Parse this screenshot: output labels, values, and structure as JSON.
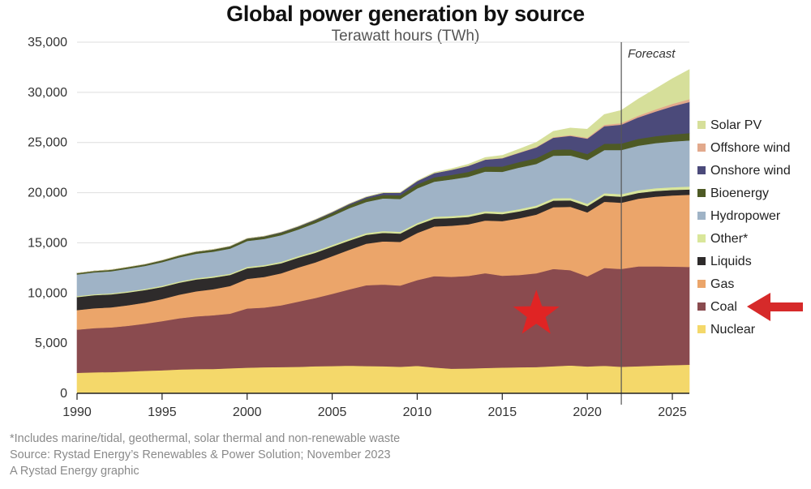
{
  "chart_data": {
    "type": "area",
    "title": "Global power generation by source",
    "subtitle": "Terawatt hours (TWh)",
    "ylim": [
      0,
      35000
    ],
    "yticks": [
      0,
      5000,
      10000,
      15000,
      20000,
      25000,
      30000,
      35000
    ],
    "ytick_labels": [
      "0",
      "5,000",
      "10,000",
      "15,000",
      "20,000",
      "25,000",
      "30,000",
      "35,000"
    ],
    "xlim": [
      1990,
      2026
    ],
    "xticks": [
      1990,
      1995,
      2000,
      2005,
      2010,
      2015,
      2020,
      2025
    ],
    "xtick_labels": [
      "1990",
      "1995",
      "2000",
      "2005",
      "2010",
      "2015",
      "2020",
      "2025"
    ],
    "forecast_label": "Forecast",
    "forecast_start": 2022,
    "legend_position": "right",
    "years": [
      1990,
      1991,
      1992,
      1993,
      1994,
      1995,
      1996,
      1997,
      1998,
      1999,
      2000,
      2001,
      2002,
      2003,
      2004,
      2005,
      2006,
      2007,
      2008,
      2009,
      2010,
      2011,
      2012,
      2013,
      2014,
      2015,
      2016,
      2017,
      2018,
      2019,
      2020,
      2021,
      2022,
      2023,
      2024,
      2025,
      2026
    ],
    "series": [
      {
        "name": "Nuclear",
        "color": "#f4d86a",
        "values": [
          2050,
          2100,
          2120,
          2180,
          2250,
          2300,
          2380,
          2420,
          2430,
          2500,
          2560,
          2600,
          2620,
          2640,
          2700,
          2720,
          2760,
          2720,
          2700,
          2650,
          2740,
          2580,
          2460,
          2480,
          2530,
          2570,
          2600,
          2620,
          2700,
          2780,
          2680,
          2750,
          2650,
          2700,
          2760,
          2810,
          2850
        ]
      },
      {
        "name": "Coal",
        "color": "#8a4b4f",
        "values": [
          4300,
          4400,
          4450,
          4550,
          4700,
          4900,
          5100,
          5250,
          5350,
          5450,
          5900,
          5950,
          6150,
          6500,
          6800,
          7200,
          7600,
          8050,
          8150,
          8100,
          8550,
          9100,
          9150,
          9220,
          9450,
          9150,
          9200,
          9350,
          9700,
          9500,
          8980,
          9750,
          9750,
          9950,
          9900,
          9820,
          9750
        ]
      },
      {
        "name": "Gas",
        "color": "#eba56a",
        "values": [
          1950,
          1980,
          2000,
          2050,
          2100,
          2200,
          2350,
          2500,
          2600,
          2750,
          2950,
          3050,
          3200,
          3400,
          3550,
          3750,
          3950,
          4150,
          4300,
          4350,
          4700,
          4950,
          5100,
          5150,
          5250,
          5450,
          5650,
          5850,
          6150,
          6320,
          6380,
          6600,
          6600,
          6750,
          6950,
          7100,
          7200
        ]
      },
      {
        "name": "Liquids",
        "color": "#2e2b2b",
        "values": [
          1300,
          1300,
          1300,
          1280,
          1250,
          1200,
          1200,
          1180,
          1150,
          1100,
          1050,
          1050,
          1000,
          980,
          960,
          950,
          920,
          880,
          850,
          830,
          800,
          780,
          760,
          740,
          720,
          700,
          690,
          680,
          660,
          640,
          620,
          610,
          600,
          580,
          560,
          540,
          520
        ]
      },
      {
        "name": "Other*",
        "color": "#d9e69a",
        "values": [
          100,
          100,
          100,
          110,
          110,
          120,
          120,
          120,
          130,
          130,
          140,
          140,
          150,
          150,
          160,
          160,
          170,
          170,
          180,
          180,
          190,
          190,
          200,
          200,
          210,
          210,
          220,
          220,
          230,
          230,
          240,
          240,
          250,
          260,
          270,
          280,
          290
        ]
      },
      {
        "name": "Hydropower",
        "color": "#9fb3c6",
        "values": [
          2150,
          2180,
          2200,
          2260,
          2290,
          2360,
          2400,
          2450,
          2460,
          2500,
          2590,
          2600,
          2650,
          2660,
          2800,
          2900,
          3050,
          3110,
          3250,
          3260,
          3450,
          3500,
          3650,
          3800,
          3950,
          4000,
          4150,
          4150,
          4250,
          4250,
          4350,
          4300,
          4400,
          4450,
          4500,
          4550,
          4600
        ]
      },
      {
        "name": "Bioenergy",
        "color": "#4e5a25",
        "values": [
          130,
          130,
          140,
          150,
          160,
          170,
          180,
          190,
          200,
          210,
          220,
          230,
          240,
          250,
          270,
          290,
          310,
          330,
          350,
          370,
          400,
          430,
          450,
          480,
          500,
          530,
          550,
          570,
          590,
          600,
          610,
          630,
          650,
          670,
          690,
          710,
          730
        ]
      },
      {
        "name": "Onshore wind",
        "color": "#4b4a7a",
        "values": [
          4,
          6,
          8,
          10,
          13,
          15,
          18,
          20,
          25,
          30,
          35,
          45,
          55,
          65,
          80,
          100,
          130,
          165,
          210,
          260,
          330,
          420,
          500,
          600,
          680,
          820,
          920,
          1070,
          1200,
          1350,
          1530,
          1750,
          1880,
          2150,
          2450,
          2800,
          3100
        ]
      },
      {
        "name": "Offshore wind",
        "color": "#e2a98c",
        "values": [
          0,
          0,
          0,
          0,
          0,
          0,
          0,
          0,
          0,
          0,
          0,
          0,
          0,
          0,
          0,
          1,
          2,
          3,
          4,
          5,
          7,
          10,
          13,
          20,
          25,
          35,
          40,
          50,
          60,
          75,
          90,
          140,
          150,
          180,
          210,
          250,
          280
        ]
      },
      {
        "name": "Solar PV",
        "color": "#d6df9a",
        "values": [
          0,
          0,
          0,
          0,
          0,
          1,
          1,
          1,
          1,
          1,
          1,
          2,
          2,
          3,
          4,
          5,
          7,
          10,
          15,
          25,
          35,
          60,
          100,
          140,
          190,
          250,
          330,
          450,
          580,
          700,
          850,
          1020,
          1280,
          1650,
          2050,
          2500,
          2950
        ]
      }
    ]
  },
  "legend_order": [
    "Solar PV",
    "Offshore wind",
    "Onshore wind",
    "Bioenergy",
    "Hydropower",
    "Other*",
    "Liquids",
    "Gas",
    "Coal",
    "Nuclear"
  ],
  "footnotes": {
    "line1": "*Includes marine/tidal, geothermal, solar thermal and non-renewable waste",
    "line2": "Source: Rystad Energy’s Renewables & Power Solution; November 2023",
    "line3": "A Rystad Energy graphic"
  },
  "annotations": {
    "star": {
      "year": 2017,
      "value": 7900,
      "color": "#e02424"
    },
    "arrow": {
      "color": "#d62a2a",
      "target": "Coal"
    }
  }
}
